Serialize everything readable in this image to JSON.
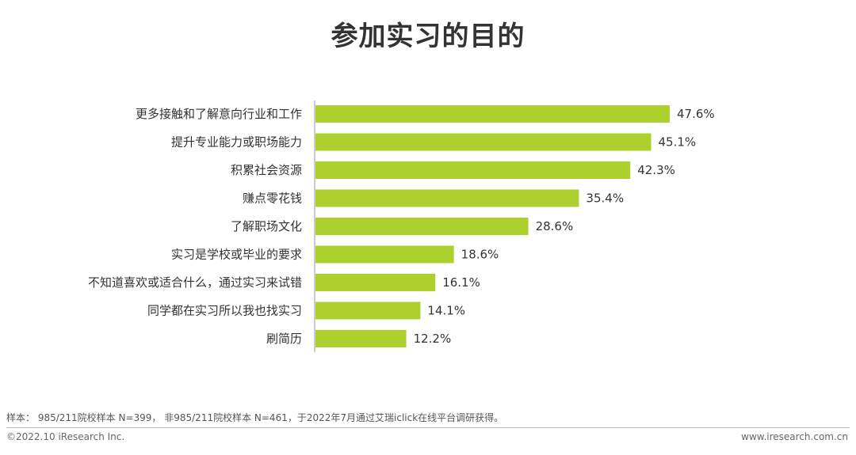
{
  "page": {
    "title": "参加实习的目的",
    "note": "样本： 985/211院校样本 N=399， 非985/211院校样本 N=461，于2022年7月通过艾瑞iclick在线平台调研获得。",
    "copyright": "©2022.10 iResearch Inc.",
    "website": "www.iresearch.com.cn"
  },
  "colors": {
    "bar": "#acd02e",
    "axis": "#999999",
    "text": "#333333"
  },
  "chart_data": {
    "type": "bar",
    "orientation": "horizontal",
    "categories": [
      "更多接触和了解意向行业和工作",
      "提升专业能力或职场能力",
      "积累社会资源",
      "赚点零花钱",
      "了解职场文化",
      "实习是学校或毕业的要求",
      "不知道喜欢或适合什么，通过实习来试错",
      "同学都在实习所以我也找实习",
      "刷简历"
    ],
    "values": [
      47.6,
      45.1,
      42.3,
      35.4,
      28.6,
      18.6,
      16.1,
      14.1,
      12.2
    ],
    "labels": [
      "47.6%",
      "45.1%",
      "42.3%",
      "35.4%",
      "28.6%",
      "18.6%",
      "16.1%",
      "14.1%",
      "12.2%"
    ],
    "unit": "%",
    "xlim": [
      0,
      47.6
    ],
    "grid": false,
    "legend": "none"
  }
}
